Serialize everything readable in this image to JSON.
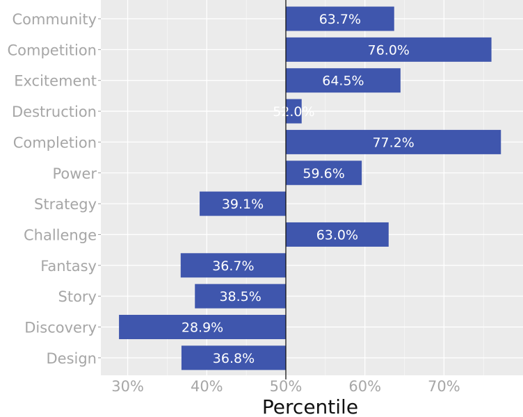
{
  "chart_data": {
    "type": "bar",
    "orientation": "horizontal",
    "categories": [
      "Community",
      "Competition",
      "Excitement",
      "Destruction",
      "Completion",
      "Power",
      "Strategy",
      "Challenge",
      "Fantasy",
      "Story",
      "Discovery",
      "Design"
    ],
    "values": [
      63.7,
      76.0,
      64.5,
      52.0,
      77.2,
      59.6,
      39.1,
      63.0,
      36.7,
      38.5,
      28.9,
      36.8
    ],
    "labels": [
      "63.7%",
      "76.0%",
      "64.5%",
      "52.0%",
      "77.2%",
      "59.6%",
      "39.1%",
      "63.0%",
      "36.7%",
      "38.5%",
      "28.9%",
      "36.8%"
    ],
    "baseline": 50,
    "xlabel": "Percentile",
    "ylabel": "",
    "xlim": [
      26.6,
      80
    ],
    "xticks": [
      30,
      40,
      50,
      60,
      70
    ],
    "xtick_labels": [
      "30%",
      "40%",
      "50%",
      "60%",
      "70%"
    ],
    "grid": true,
    "colors": {
      "bar": "#3F56AD",
      "panel": "#EBEBEB",
      "grid": "#FFFFFF",
      "tick_text": "#A6A6A6"
    }
  }
}
